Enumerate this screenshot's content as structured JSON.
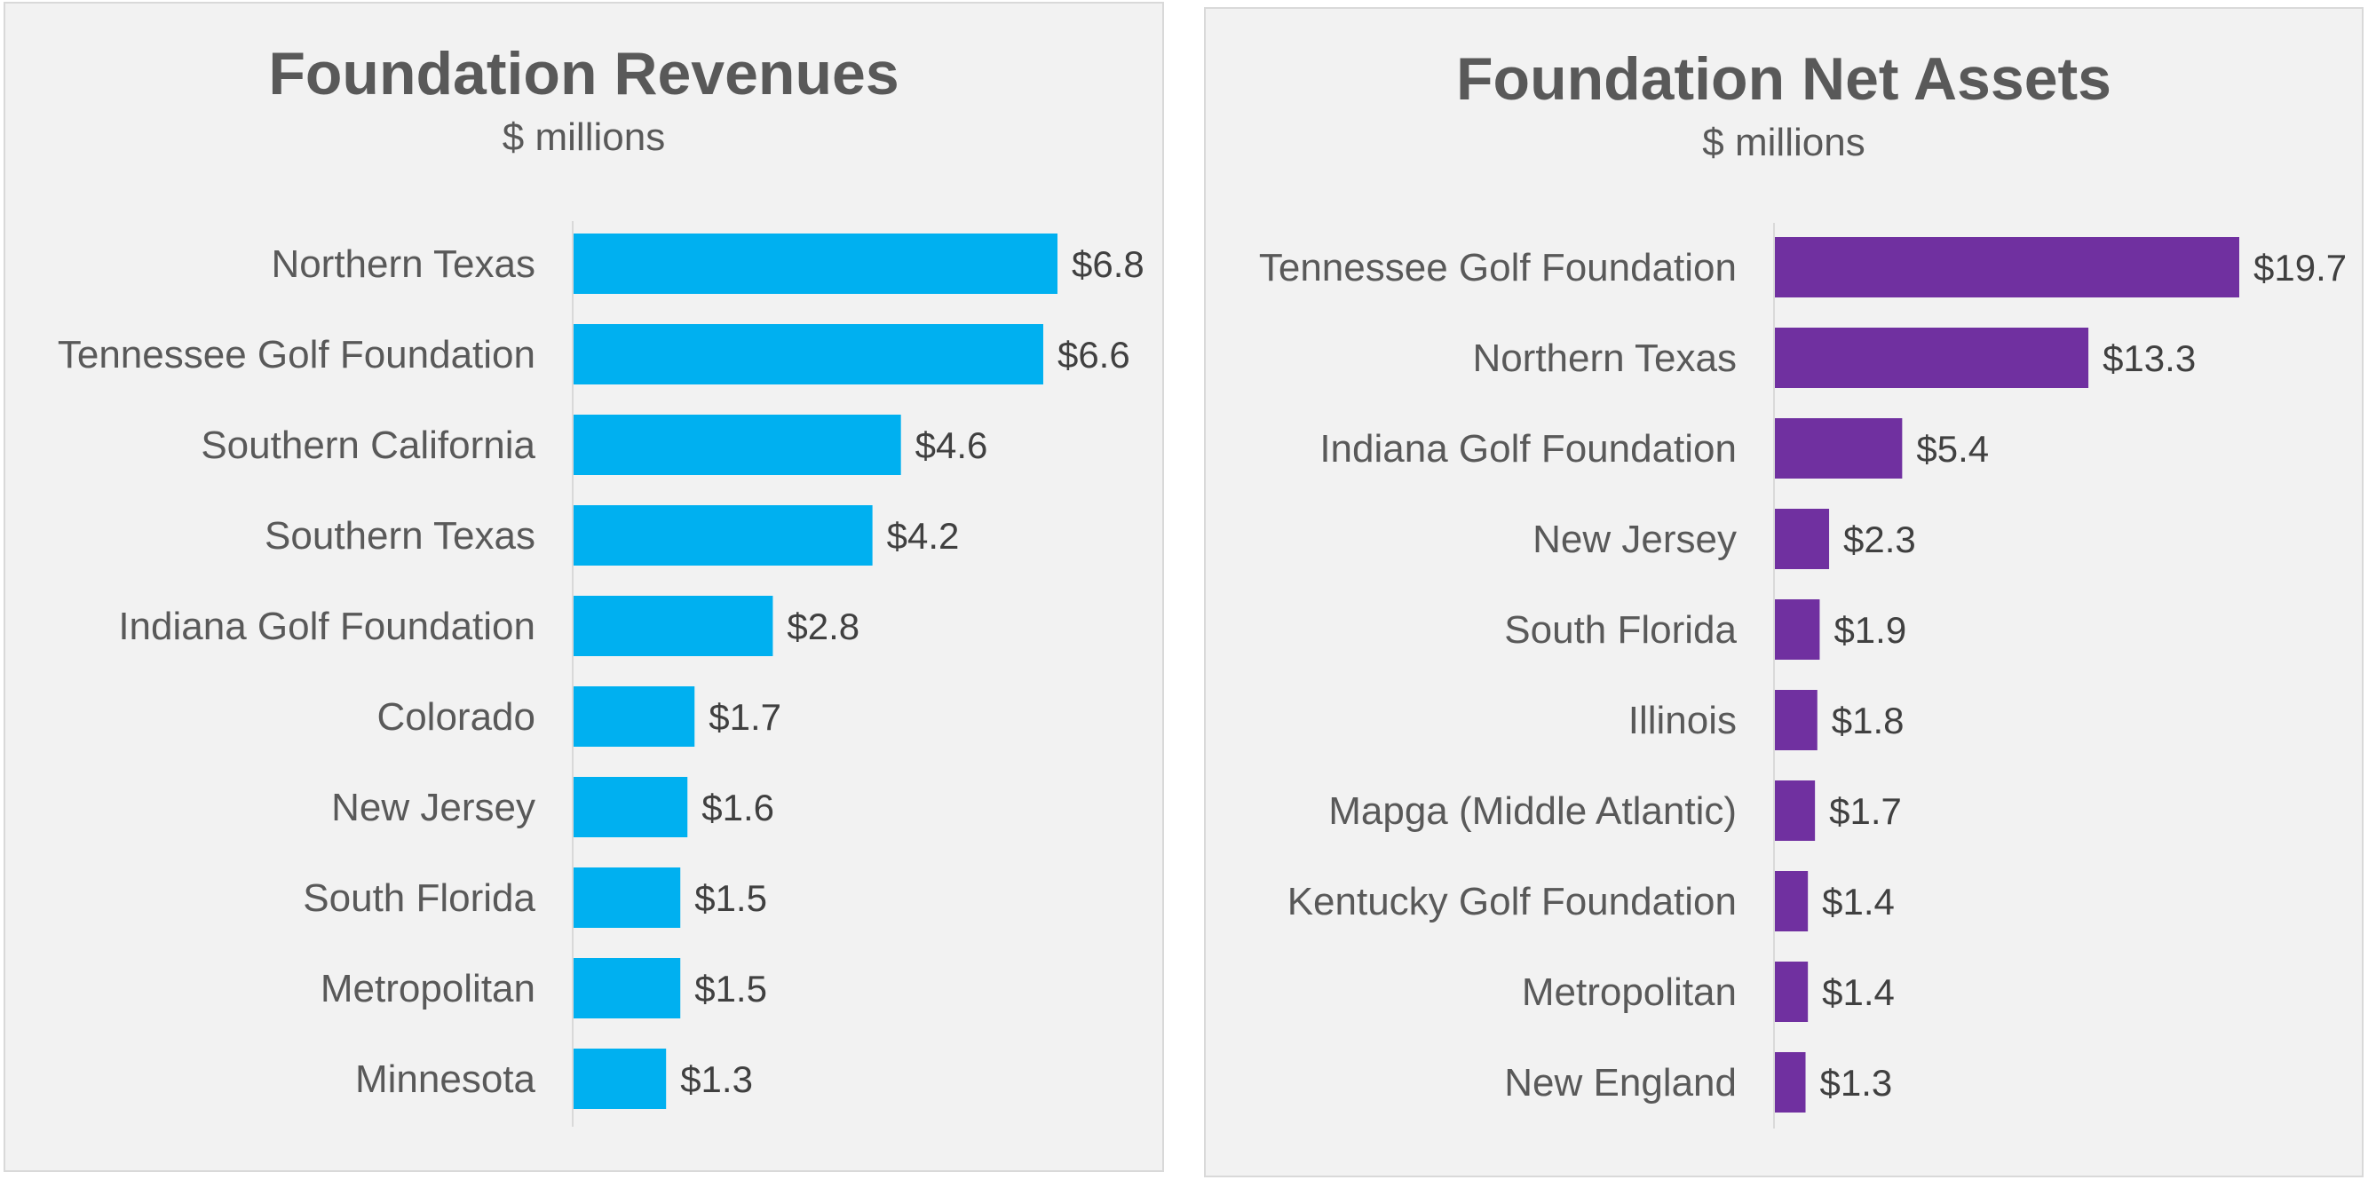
{
  "chart_data": [
    {
      "type": "bar",
      "orientation": "horizontal",
      "title": "Foundation Revenues",
      "subtitle": "$ millions",
      "categories": [
        "Northern Texas",
        "Tennessee Golf Foundation",
        "Southern California",
        "Southern Texas",
        "Indiana Golf Foundation",
        "Colorado",
        "New Jersey",
        "South Florida",
        "Metropolitan",
        "Minnesota"
      ],
      "values": [
        6.8,
        6.6,
        4.6,
        4.2,
        2.8,
        1.7,
        1.6,
        1.5,
        1.5,
        1.3
      ],
      "value_labels": [
        "$6.8",
        "$6.6",
        "$4.6",
        "$4.2",
        "$2.8",
        "$1.7",
        "$1.6",
        "$1.5",
        "$1.5",
        "$1.3"
      ],
      "bar_color": "#00b0f0",
      "xlim": [
        0,
        7.3
      ],
      "grid": false
    },
    {
      "type": "bar",
      "orientation": "horizontal",
      "title": "Foundation Net Assets",
      "subtitle": "$ millions",
      "categories": [
        "Tennessee Golf Foundation",
        "Northern Texas",
        "Indiana Golf Foundation",
        "New Jersey",
        "South Florida",
        "Illinois",
        "Mapga (Middle Atlantic)",
        "Kentucky Golf Foundation",
        "Metropolitan",
        "New England"
      ],
      "values": [
        19.7,
        13.3,
        5.4,
        2.3,
        1.9,
        1.8,
        1.7,
        1.4,
        1.4,
        1.3
      ],
      "value_labels": [
        "$19.7",
        "$13.3",
        "$5.4",
        "$2.3",
        "$1.9",
        "$1.8",
        "$1.7",
        "$1.4",
        "$1.4",
        "$1.3"
      ],
      "bar_color": "#7030a0",
      "xlim": [
        0,
        21.6
      ],
      "grid": false
    }
  ]
}
